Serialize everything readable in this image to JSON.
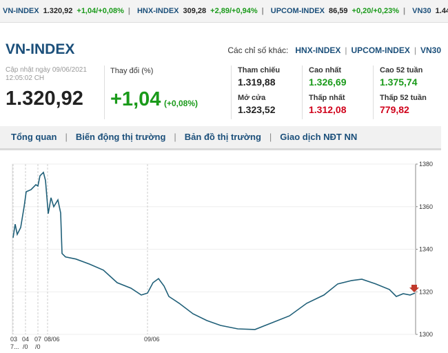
{
  "ticker": [
    {
      "name": "VN-INDEX",
      "value": "1.320,92",
      "change": "+1,04/+0,08%"
    },
    {
      "name": "HNX-INDEX",
      "value": "309,28",
      "change": "+2,89/+0,94%"
    },
    {
      "name": "UPCOM-INDEX",
      "value": "86,59",
      "change": "+0,20/+0,23%"
    },
    {
      "name": "VN30",
      "value": "1.44"
    }
  ],
  "header": {
    "title": "VN-INDEX",
    "others_label": "Các chỉ số khác:",
    "others": [
      "HNX-INDEX",
      "UPCOM-INDEX",
      "VN30"
    ]
  },
  "summary": {
    "updated": "Cập nhật ngày 09/06/2021",
    "time": "12:05:02 CH",
    "price": "1.320,92",
    "change_label": "Thay đổi (%)",
    "change": "+1,04",
    "change_pct": "(+0,08%)",
    "stats": [
      {
        "label": "Tham chiếu",
        "value": "1.319,88",
        "tone": "neutral"
      },
      {
        "label": "Cao nhất",
        "value": "1.326,69",
        "tone": "up"
      },
      {
        "label": "Cao 52 tuần",
        "value": "1.375,74",
        "tone": "up"
      },
      {
        "label": "Mở cửa",
        "value": "1.323,52",
        "tone": "neutral"
      },
      {
        "label": "Thấp nhất",
        "value": "1.312,08",
        "tone": "down"
      },
      {
        "label": "Thấp 52 tuần",
        "value": "779,82",
        "tone": "down"
      }
    ]
  },
  "tabs": [
    "Tổng quan",
    "Biến động thị trường",
    "Bản đồ thị trường",
    "Giao dịch NĐT NN"
  ],
  "chart": {
    "type": "line",
    "color": "#1f5f78",
    "ylim": [
      1300,
      1380
    ],
    "yticks": [
      1300,
      1320,
      1340,
      1360,
      1380
    ],
    "x_labels": [
      {
        "top": "03",
        "bottom": "7..."
      },
      {
        "top": "04",
        "bottom": "/0"
      },
      {
        "top": "07",
        "bottom": "/0"
      },
      {
        "top": "08/06"
      },
      {
        "top": "09/06"
      }
    ],
    "values": [
      1345.4,
      1351.8,
      1347,
      1350.2,
      1360,
      1367,
      1368,
      1370.3,
      1369.7,
      1374.5,
      1376.1,
      1372.3,
      1356.7,
      1364.2,
      1360,
      1363.2,
      1357,
      1338,
      1336.4,
      1335.4,
      1333,
      1330.2,
      1324.3,
      1321.7,
      1318.5,
      1319.4,
      1324.3,
      1326.2,
      1322.7,
      1317.8,
      1314.6,
      1309.7,
      1306.5,
      1304.2,
      1302.6,
      1302.3,
      1305.5,
      1308.7,
      1314.6,
      1318.5,
      1323.7,
      1325.3,
      1325.9,
      1323.7,
      1321.1,
      1317.8,
      1319.1,
      1318.5,
      1319.4
    ]
  }
}
